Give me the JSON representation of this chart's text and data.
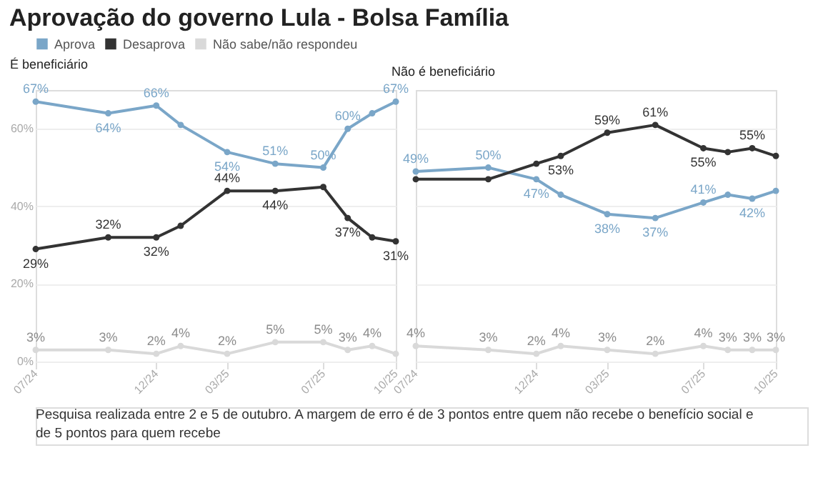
{
  "chart_data": [
    {
      "type": "line",
      "title": "Aprovação do governo Lula - Bolsa Família",
      "subtitle": "É beneficiário",
      "legend": "top left",
      "marker": "circle",
      "grid": "y",
      "line_style": "solid",
      "x": [
        "2024-07",
        "2024-10",
        "2024-12",
        "2025-01",
        "2025-03",
        "2025-05",
        "2025-07",
        "2025-08",
        "2025-09",
        "2025-10"
      ],
      "xlim": [
        "2024-07",
        "2025-10"
      ],
      "xticks": [
        {
          "value": "2024-07",
          "label": "07/24"
        },
        {
          "value": "2024-12",
          "label": "12/24"
        },
        {
          "value": "2025-03",
          "label": "03/25"
        },
        {
          "value": "2025-07",
          "label": "07/25"
        },
        {
          "value": "2025-10",
          "label": "10/25"
        }
      ],
      "ylim": [
        0,
        70
      ],
      "yticks": [
        {
          "value": 0,
          "label": "0%"
        },
        {
          "value": 20,
          "label": "20%"
        },
        {
          "value": 40,
          "label": "40%"
        },
        {
          "value": 60,
          "label": "60%"
        }
      ],
      "series": [
        {
          "name": "Aprova",
          "color": "#7aa6c8",
          "values": [
            67,
            64,
            66,
            61,
            54,
            51,
            50,
            60,
            64,
            67
          ],
          "value_labels": [
            "67%",
            "64%",
            "66%",
            null,
            "54%",
            "51%",
            "50%",
            "60%",
            null,
            "67%"
          ]
        },
        {
          "name": "Desaprova",
          "color": "#333333",
          "values": [
            29,
            32,
            32,
            35,
            44,
            44,
            45,
            37,
            32,
            31
          ],
          "value_labels": [
            "29%",
            "32%",
            "32%",
            null,
            "44%",
            "44%",
            null,
            "37%",
            null,
            "31%"
          ]
        },
        {
          "name": "Não sabe/não respondeu",
          "color": "#d9d9d9",
          "values": [
            3,
            3,
            2,
            4,
            2,
            5,
            5,
            3,
            4,
            2
          ],
          "value_labels": [
            "3%",
            "3%",
            "2%",
            "4%",
            "2%",
            "5%",
            "5%",
            "3%",
            "4%",
            null
          ]
        }
      ],
      "annotations": [
        "Pesquisa realizada entre 2 e 5 de outubro. A margem de erro é de 3 pontos entre quem não recebe o benefício social e de 5 pontos para quem recebe"
      ]
    },
    {
      "type": "line",
      "subtitle": "Não é beneficiário",
      "marker": "circle",
      "grid": "y",
      "line_style": "solid",
      "tick_labels": "x",
      "x": [
        "2024-07",
        "2024-10",
        "2024-12",
        "2025-01",
        "2025-03",
        "2025-05",
        "2025-07",
        "2025-08",
        "2025-09",
        "2025-10"
      ],
      "xlim": [
        "2024-07",
        "2025-10"
      ],
      "xticks": [
        {
          "value": "2024-07",
          "label": "07/24"
        },
        {
          "value": "2024-12",
          "label": "12/24"
        },
        {
          "value": "2025-03",
          "label": "03/25"
        },
        {
          "value": "2025-07",
          "label": "07/25"
        },
        {
          "value": "2025-10",
          "label": "10/25"
        }
      ],
      "ylim": [
        0,
        70
      ],
      "yticks": [
        {
          "value": 0,
          "label": "0%"
        },
        {
          "value": 20,
          "label": "20%"
        },
        {
          "value": 40,
          "label": "40%"
        },
        {
          "value": 60,
          "label": "60%"
        }
      ],
      "series": [
        {
          "name": "Aprova",
          "color": "#7aa6c8",
          "values": [
            49,
            50,
            47,
            43,
            38,
            37,
            41,
            43,
            42,
            44
          ],
          "value_labels": [
            "49%",
            "50%",
            "47%",
            null,
            "38%",
            "37%",
            "41%",
            null,
            "42%",
            null
          ]
        },
        {
          "name": "Desaprova",
          "color": "#333333",
          "values": [
            47,
            47,
            51,
            53,
            59,
            61,
            55,
            54,
            55,
            53
          ],
          "value_labels": [
            null,
            null,
            null,
            "53%",
            "59%",
            "61%",
            "55%",
            null,
            "55%",
            null
          ]
        },
        {
          "name": "Não sabe/não respondeu",
          "color": "#d9d9d9",
          "values": [
            4,
            3,
            2,
            4,
            3,
            2,
            4,
            3,
            3,
            3
          ],
          "value_labels": [
            "4%",
            "3%",
            "2%",
            "4%",
            "3%",
            "2%",
            "4%",
            "3%",
            "3%",
            "3%"
          ]
        }
      ]
    }
  ]
}
